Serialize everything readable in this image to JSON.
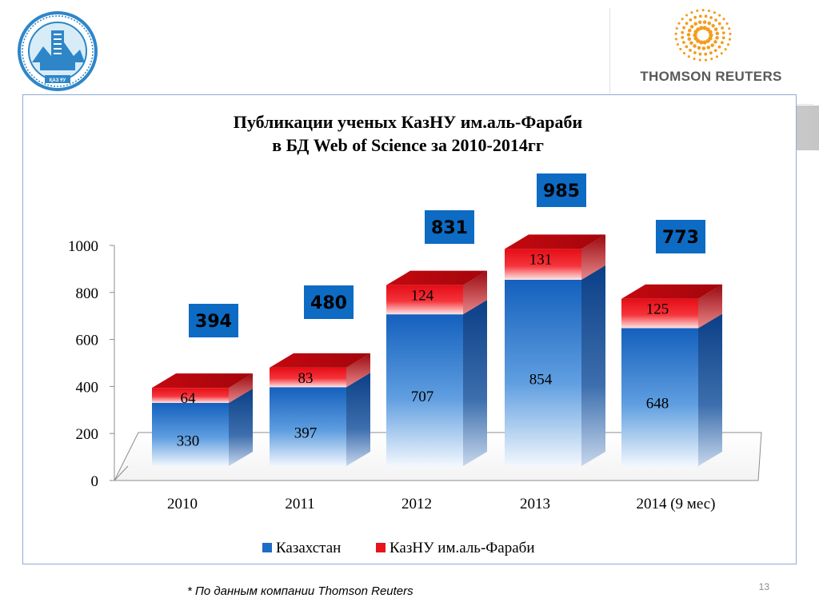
{
  "header": {
    "logo_top_text": "",
    "logo_bottom_text": "ҚАЗ ҰУ",
    "tr_logo_text": "THOMSON REUTERS"
  },
  "chart_data": {
    "type": "bar",
    "stacked": true,
    "title": "Публикации ученых КазНУ им.аль-Фараби",
    "subtitle": "в БД Web of Science за 2010-2014гг",
    "categories": [
      "2010",
      "2011",
      "2012",
      "2013",
      "2014 (9 мес)"
    ],
    "series": [
      {
        "name": "Казахстан",
        "values": [
          330,
          397,
          707,
          854,
          648
        ],
        "color": "#1f6cc6"
      },
      {
        "name": "КазНУ им.аль-Фараби",
        "values": [
          64,
          83,
          124,
          131,
          125
        ],
        "color": "#e8131c"
      }
    ],
    "totals": [
      394,
      480,
      831,
      985,
      773
    ],
    "y_ticks": [
      0,
      200,
      400,
      600,
      800,
      1000
    ],
    "ylim": [
      0,
      1000
    ],
    "legend_position": "bottom",
    "grid": false
  },
  "footnote": "* По данным компании Thomson Reuters",
  "page_number": "13"
}
